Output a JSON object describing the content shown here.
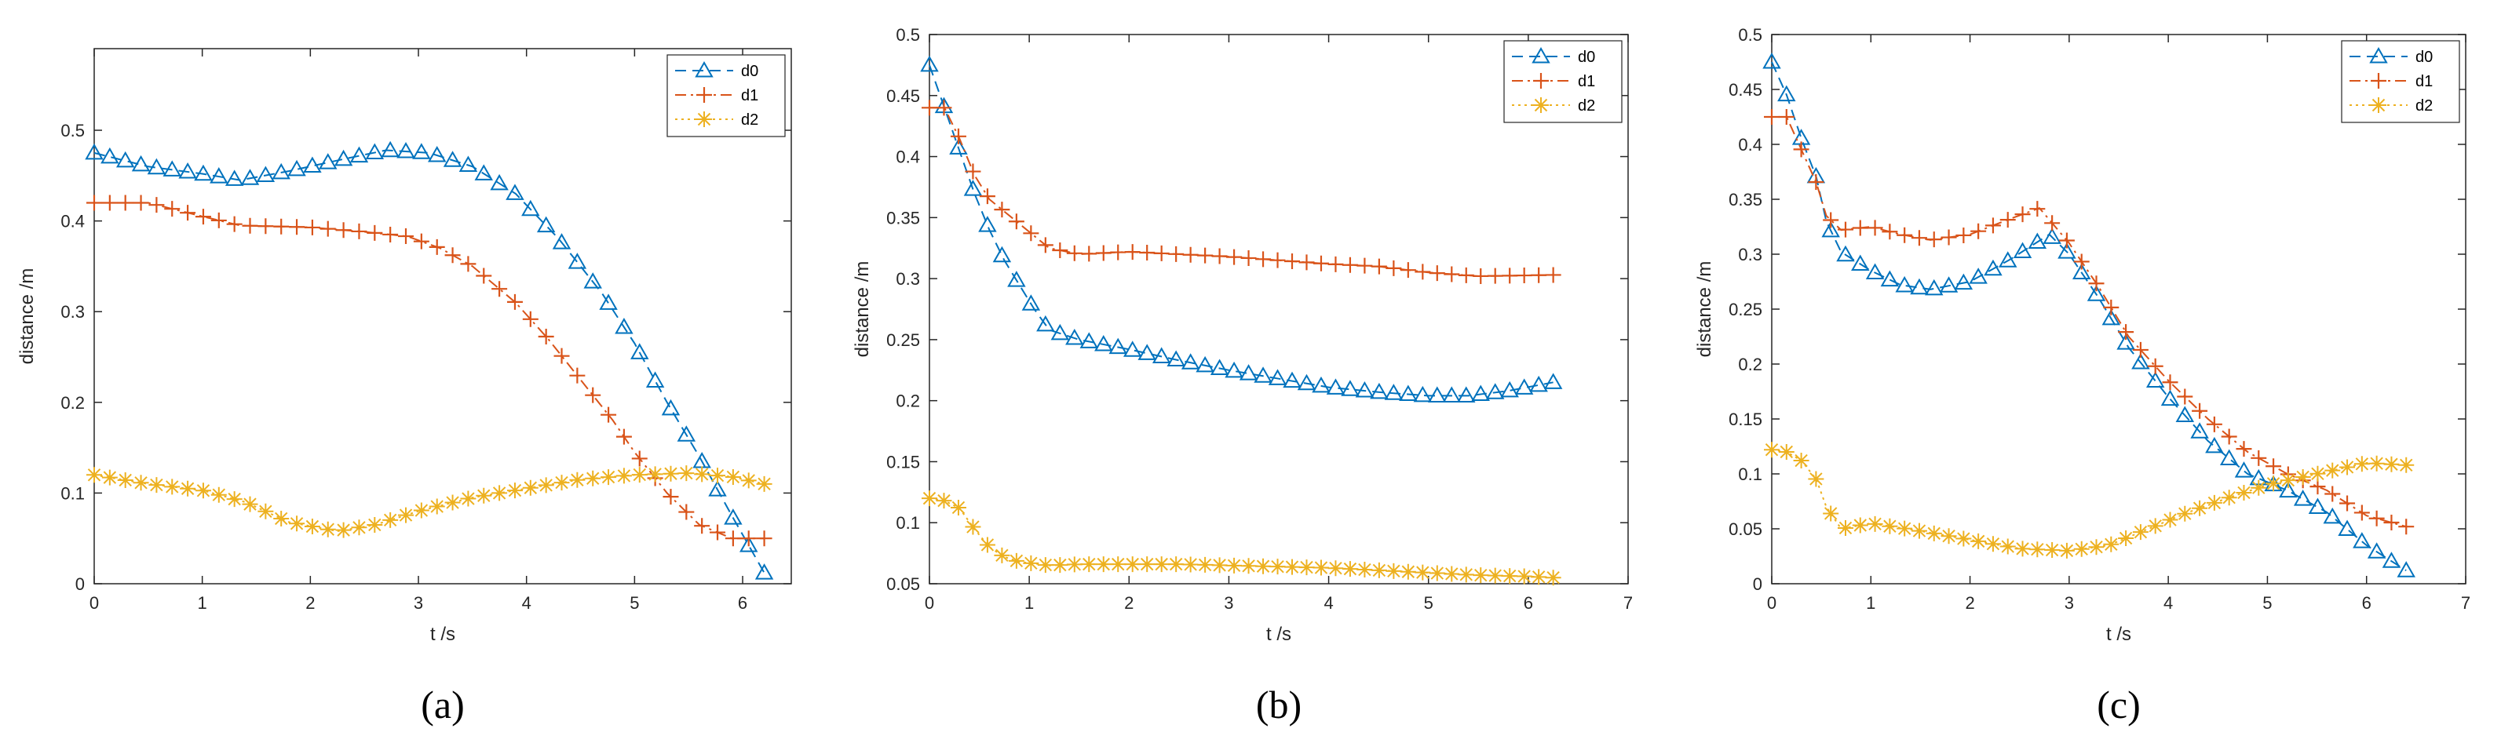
{
  "colors": {
    "d0": "#0072BD",
    "d1": "#D95319",
    "d2": "#EDB120",
    "axis": "#262626"
  },
  "chart_data": [
    {
      "type": "line",
      "caption": "(a)",
      "xlabel": "t /s",
      "ylabel": "distance /m",
      "xlim": [
        0,
        6.45
      ],
      "ylim": [
        0,
        0.59
      ],
      "xticks": [
        0,
        1,
        2,
        3,
        4,
        5,
        6
      ],
      "yticks": [
        0,
        0.1,
        0.2,
        0.3,
        0.4,
        0.5
      ],
      "ytick_labels": [
        "0",
        "0.1",
        "0.2",
        "0.3",
        "0.4",
        "0.5"
      ],
      "legend": [
        "d0",
        "d1",
        "d2"
      ],
      "legend_position": "top-right",
      "series": [
        {
          "name": "d0",
          "marker": "triangle",
          "line": "dashed",
          "points": [
            [
              0,
              0.475
            ],
            [
              0.5,
              0.46
            ],
            [
              1,
              0.452
            ],
            [
              1.35,
              0.445
            ],
            [
              1.8,
              0.455
            ],
            [
              2.3,
              0.468
            ],
            [
              2.7,
              0.478
            ],
            [
              3.1,
              0.475
            ],
            [
              3.5,
              0.46
            ],
            [
              3.9,
              0.43
            ],
            [
              4.3,
              0.38
            ],
            [
              4.7,
              0.32
            ],
            [
              5.0,
              0.265
            ],
            [
              5.3,
              0.2
            ],
            [
              5.6,
              0.14
            ],
            [
              5.9,
              0.075
            ],
            [
              6.2,
              0.012
            ]
          ]
        },
        {
          "name": "d1",
          "marker": "plus",
          "line": "dashdot",
          "points": [
            [
              0,
              0.42
            ],
            [
              0.5,
              0.42
            ],
            [
              1.0,
              0.405
            ],
            [
              1.35,
              0.395
            ],
            [
              2.0,
              0.393
            ],
            [
              2.5,
              0.388
            ],
            [
              2.9,
              0.383
            ],
            [
              3.2,
              0.37
            ],
            [
              3.5,
              0.35
            ],
            [
              3.9,
              0.31
            ],
            [
              4.2,
              0.27
            ],
            [
              4.5,
              0.225
            ],
            [
              4.8,
              0.18
            ],
            [
              5.0,
              0.145
            ],
            [
              5.3,
              0.1
            ],
            [
              5.6,
              0.065
            ],
            [
              5.9,
              0.05
            ],
            [
              6.2,
              0.05
            ]
          ]
        },
        {
          "name": "d2",
          "marker": "asterisk",
          "line": "dotted",
          "points": [
            [
              0,
              0.12
            ],
            [
              0.5,
              0.11
            ],
            [
              1.0,
              0.103
            ],
            [
              1.4,
              0.09
            ],
            [
              1.8,
              0.068
            ],
            [
              2.25,
              0.058
            ],
            [
              2.6,
              0.065
            ],
            [
              3.0,
              0.08
            ],
            [
              3.5,
              0.095
            ],
            [
              4.0,
              0.105
            ],
            [
              4.5,
              0.115
            ],
            [
              5.0,
              0.12
            ],
            [
              5.5,
              0.122
            ],
            [
              5.9,
              0.118
            ],
            [
              6.2,
              0.11
            ]
          ]
        }
      ]
    },
    {
      "type": "line",
      "caption": "(b)",
      "xlabel": "t /s",
      "ylabel": "distance /m",
      "xlim": [
        0,
        7
      ],
      "ylim": [
        0.05,
        0.5
      ],
      "xticks": [
        0,
        1,
        2,
        3,
        4,
        5,
        6,
        7
      ],
      "yticks": [
        0.05,
        0.1,
        0.15,
        0.2,
        0.25,
        0.3,
        0.35,
        0.4,
        0.45,
        0.5
      ],
      "ytick_labels": [
        "0.05",
        "0.1",
        "0.15",
        "0.2",
        "0.25",
        "0.3",
        "0.35",
        "0.4",
        "0.45",
        "0.5"
      ],
      "legend": [
        "d0",
        "d1",
        "d2"
      ],
      "legend_position": "top-right",
      "series": [
        {
          "name": "d0",
          "marker": "triangle",
          "line": "dashed",
          "points": [
            [
              0,
              0.475
            ],
            [
              0.15,
              0.44
            ],
            [
              0.3,
              0.405
            ],
            [
              0.45,
              0.37
            ],
            [
              0.6,
              0.34
            ],
            [
              0.75,
              0.315
            ],
            [
              0.9,
              0.295
            ],
            [
              1.05,
              0.275
            ],
            [
              1.2,
              0.258
            ],
            [
              1.5,
              0.25
            ],
            [
              2,
              0.242
            ],
            [
              2.5,
              0.233
            ],
            [
              3,
              0.225
            ],
            [
              3.5,
              0.218
            ],
            [
              4,
              0.211
            ],
            [
              4.5,
              0.207
            ],
            [
              5,
              0.204
            ],
            [
              5.4,
              0.204
            ],
            [
              5.8,
              0.208
            ],
            [
              6.25,
              0.215
            ]
          ]
        },
        {
          "name": "d1",
          "marker": "plus",
          "line": "dashdot",
          "points": [
            [
              0,
              0.44
            ],
            [
              0.15,
              0.44
            ],
            [
              0.3,
              0.415
            ],
            [
              0.45,
              0.385
            ],
            [
              0.6,
              0.365
            ],
            [
              0.75,
              0.355
            ],
            [
              0.9,
              0.345
            ],
            [
              1.05,
              0.335
            ],
            [
              1.2,
              0.325
            ],
            [
              1.5,
              0.32
            ],
            [
              2,
              0.322
            ],
            [
              2.5,
              0.32
            ],
            [
              3,
              0.318
            ],
            [
              3.5,
              0.315
            ],
            [
              4,
              0.312
            ],
            [
              4.5,
              0.31
            ],
            [
              5,
              0.305
            ],
            [
              5.5,
              0.302
            ],
            [
              6.25,
              0.303
            ]
          ]
        },
        {
          "name": "d2",
          "marker": "asterisk",
          "line": "dotted",
          "points": [
            [
              0,
              0.12
            ],
            [
              0.15,
              0.118
            ],
            [
              0.3,
              0.112
            ],
            [
              0.45,
              0.095
            ],
            [
              0.6,
              0.08
            ],
            [
              0.75,
              0.072
            ],
            [
              0.9,
              0.068
            ],
            [
              1.2,
              0.065
            ],
            [
              1.5,
              0.066
            ],
            [
              2,
              0.066
            ],
            [
              2.5,
              0.066
            ],
            [
              3,
              0.065
            ],
            [
              3.5,
              0.064
            ],
            [
              4,
              0.063
            ],
            [
              4.5,
              0.061
            ],
            [
              5,
              0.059
            ],
            [
              5.5,
              0.057
            ],
            [
              6,
              0.056
            ],
            [
              6.25,
              0.055
            ]
          ]
        }
      ]
    },
    {
      "type": "line",
      "caption": "(c)",
      "xlabel": "t /s",
      "ylabel": "distance /m",
      "xlim": [
        0,
        7
      ],
      "ylim": [
        0,
        0.5
      ],
      "xticks": [
        0,
        1,
        2,
        3,
        4,
        5,
        6,
        7
      ],
      "yticks": [
        0,
        0.05,
        0.1,
        0.15,
        0.2,
        0.25,
        0.3,
        0.35,
        0.4,
        0.45,
        0.5
      ],
      "ytick_labels": [
        "0",
        "0.05",
        "0.1",
        "0.15",
        "0.2",
        "0.25",
        "0.3",
        "0.35",
        "0.4",
        "0.45",
        "0.5"
      ],
      "legend": [
        "d0",
        "d1",
        "d2"
      ],
      "legend_position": "top-right",
      "series": [
        {
          "name": "d0",
          "marker": "triangle",
          "line": "dashed",
          "points": [
            [
              0,
              0.475
            ],
            [
              0.15,
              0.445
            ],
            [
              0.3,
              0.405
            ],
            [
              0.45,
              0.37
            ],
            [
              0.55,
              0.33
            ],
            [
              0.7,
              0.302
            ],
            [
              1.0,
              0.285
            ],
            [
              1.3,
              0.272
            ],
            [
              1.6,
              0.268
            ],
            [
              2.0,
              0.275
            ],
            [
              2.4,
              0.295
            ],
            [
              2.8,
              0.318
            ],
            [
              3.0,
              0.3
            ],
            [
              3.3,
              0.26
            ],
            [
              3.6,
              0.215
            ],
            [
              4.0,
              0.17
            ],
            [
              4.4,
              0.13
            ],
            [
              4.8,
              0.1
            ],
            [
              5.2,
              0.085
            ],
            [
              5.6,
              0.065
            ],
            [
              6.0,
              0.035
            ],
            [
              6.4,
              0.012
            ]
          ]
        },
        {
          "name": "d1",
          "marker": "plus",
          "line": "dashdot",
          "points": [
            [
              0,
              0.425
            ],
            [
              0.15,
              0.425
            ],
            [
              0.3,
              0.395
            ],
            [
              0.45,
              0.365
            ],
            [
              0.55,
              0.335
            ],
            [
              0.7,
              0.322
            ],
            [
              1.0,
              0.325
            ],
            [
              1.3,
              0.318
            ],
            [
              1.6,
              0.313
            ],
            [
              2.0,
              0.318
            ],
            [
              2.4,
              0.332
            ],
            [
              2.7,
              0.342
            ],
            [
              3.0,
              0.31
            ],
            [
              3.3,
              0.27
            ],
            [
              3.6,
              0.225
            ],
            [
              4.0,
              0.185
            ],
            [
              4.4,
              0.15
            ],
            [
              4.8,
              0.12
            ],
            [
              5.2,
              0.1
            ],
            [
              5.6,
              0.085
            ],
            [
              6.0,
              0.062
            ],
            [
              6.4,
              0.052
            ]
          ]
        },
        {
          "name": "d2",
          "marker": "asterisk",
          "line": "dotted",
          "points": [
            [
              0,
              0.122
            ],
            [
              0.15,
              0.12
            ],
            [
              0.3,
              0.112
            ],
            [
              0.45,
              0.095
            ],
            [
              0.55,
              0.07
            ],
            [
              0.7,
              0.05
            ],
            [
              1.0,
              0.055
            ],
            [
              1.5,
              0.048
            ],
            [
              2.0,
              0.04
            ],
            [
              2.5,
              0.032
            ],
            [
              3.0,
              0.03
            ],
            [
              3.4,
              0.035
            ],
            [
              3.8,
              0.05
            ],
            [
              4.2,
              0.065
            ],
            [
              4.6,
              0.078
            ],
            [
              5.0,
              0.09
            ],
            [
              5.5,
              0.1
            ],
            [
              6.0,
              0.11
            ],
            [
              6.4,
              0.108
            ]
          ]
        }
      ]
    }
  ]
}
